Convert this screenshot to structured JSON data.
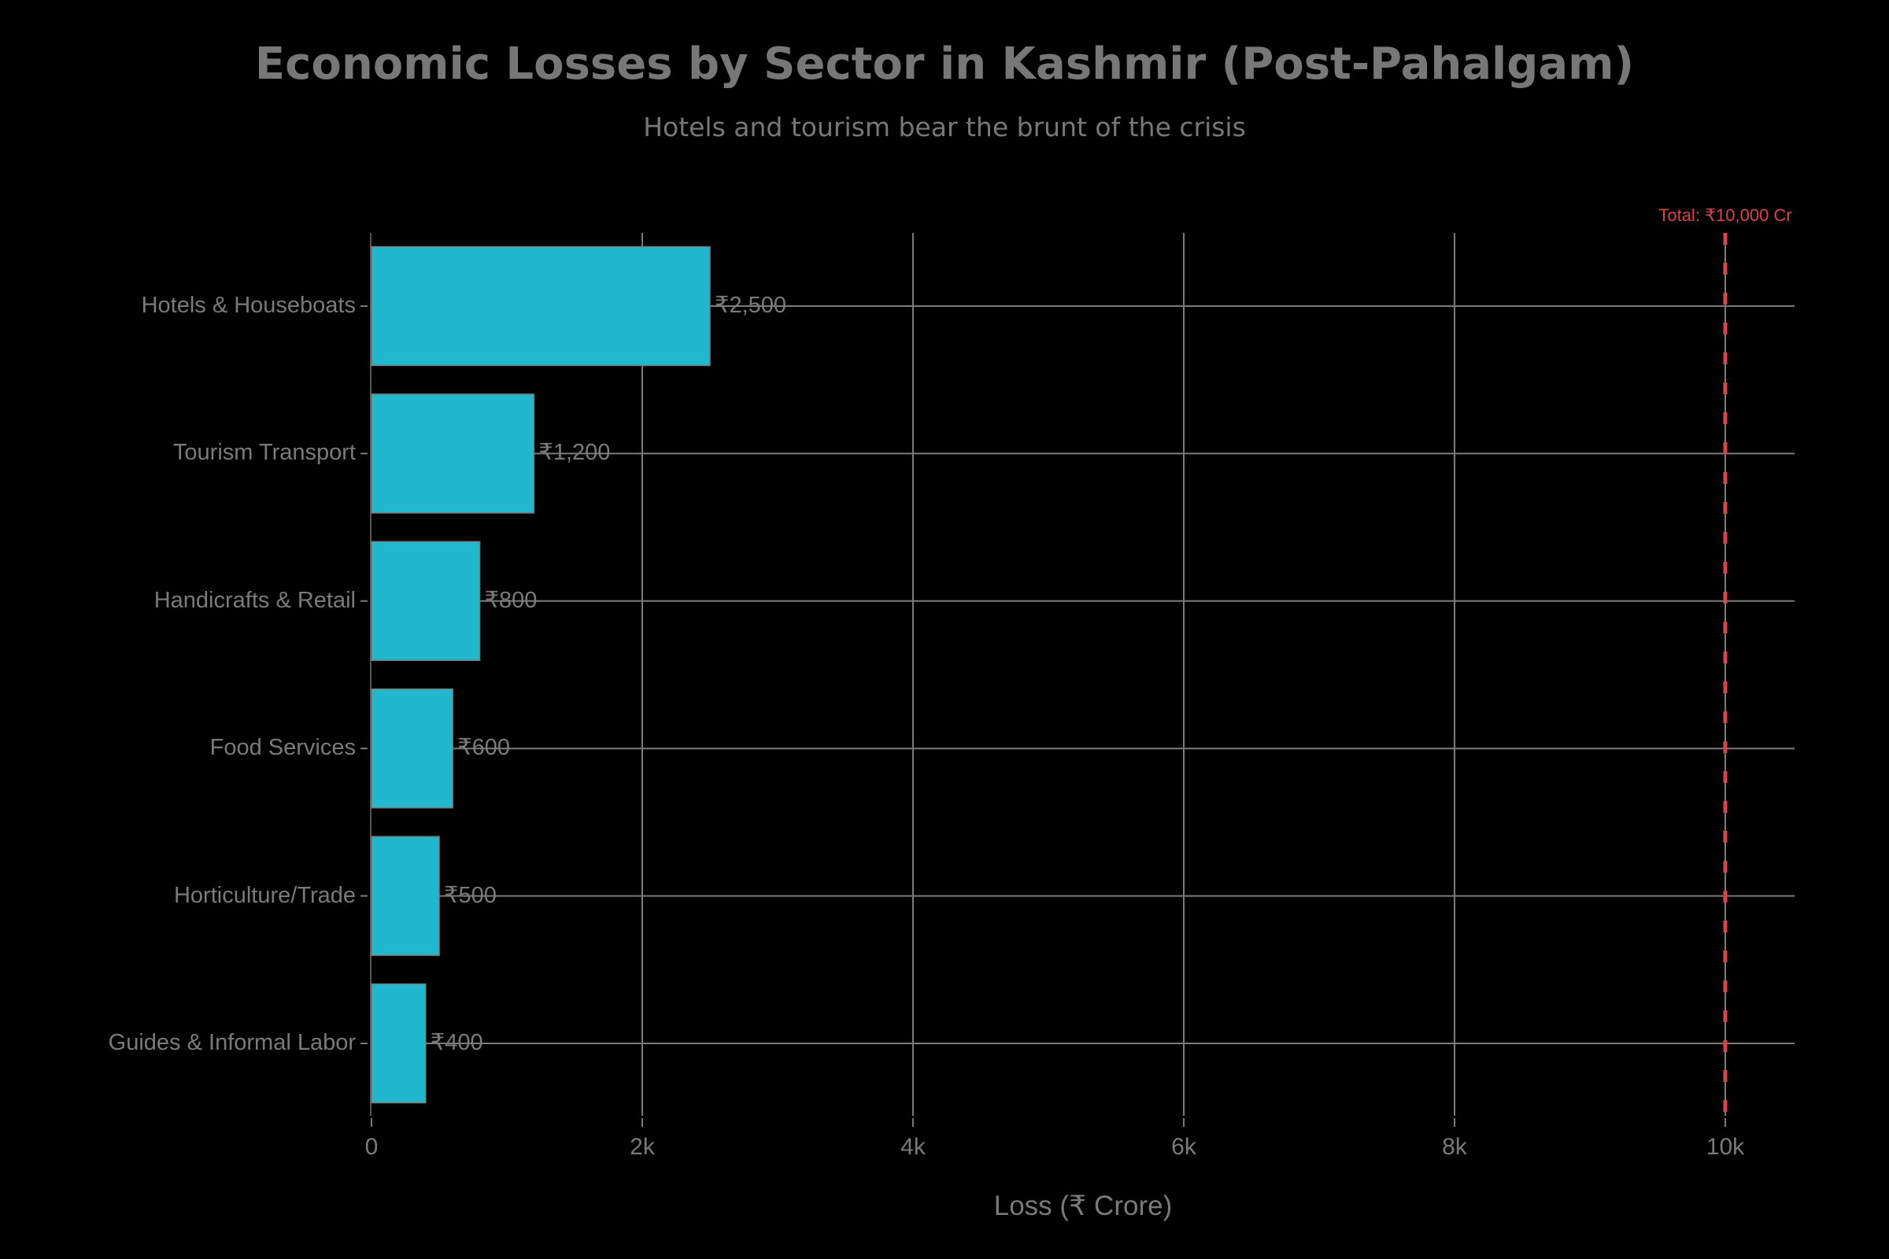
{
  "header": {
    "title": "Economic Losses by Sector in Kashmir (Post-Pahalgam)",
    "subtitle": "Hotels and tourism bear the brunt of the crisis"
  },
  "colors": {
    "background": "#000000",
    "bar": "#21b7cd",
    "bar_outline": "#7a7a7a",
    "grid": "#7a7a7a",
    "text": "#7a7a7a",
    "reference_line": "#d9434a"
  },
  "chart_data": {
    "type": "bar",
    "orientation": "horizontal",
    "title": "Economic Losses by Sector in Kashmir (Post-Pahalgam)",
    "subtitle": "Hotels and tourism bear the brunt of the crisis",
    "categories": [
      "Hotels & Houseboats",
      "Tourism Transport",
      "Handicrafts & Retail",
      "Food Services",
      "Horticulture/Trade",
      "Guides & Informal Labor"
    ],
    "values": [
      2500,
      1200,
      800,
      600,
      500,
      400
    ],
    "value_labels": [
      "₹2,500",
      "₹1,200",
      "₹800",
      "₹600",
      "₹500",
      "₹400"
    ],
    "xlabel": "Loss (₹ Crore)",
    "ylabel": "",
    "xlim": [
      0,
      10500
    ],
    "x_ticks": [
      0,
      2000,
      4000,
      6000,
      8000,
      10000
    ],
    "x_tick_labels": [
      "0",
      "2k",
      "4k",
      "6k",
      "8k",
      "10k"
    ],
    "grid": true,
    "legend": null,
    "annotations": [
      {
        "type": "vline",
        "x": 10000,
        "style": "dashed",
        "color": "#d9434a",
        "label": "Total: ₹10,000 Cr"
      }
    ]
  }
}
